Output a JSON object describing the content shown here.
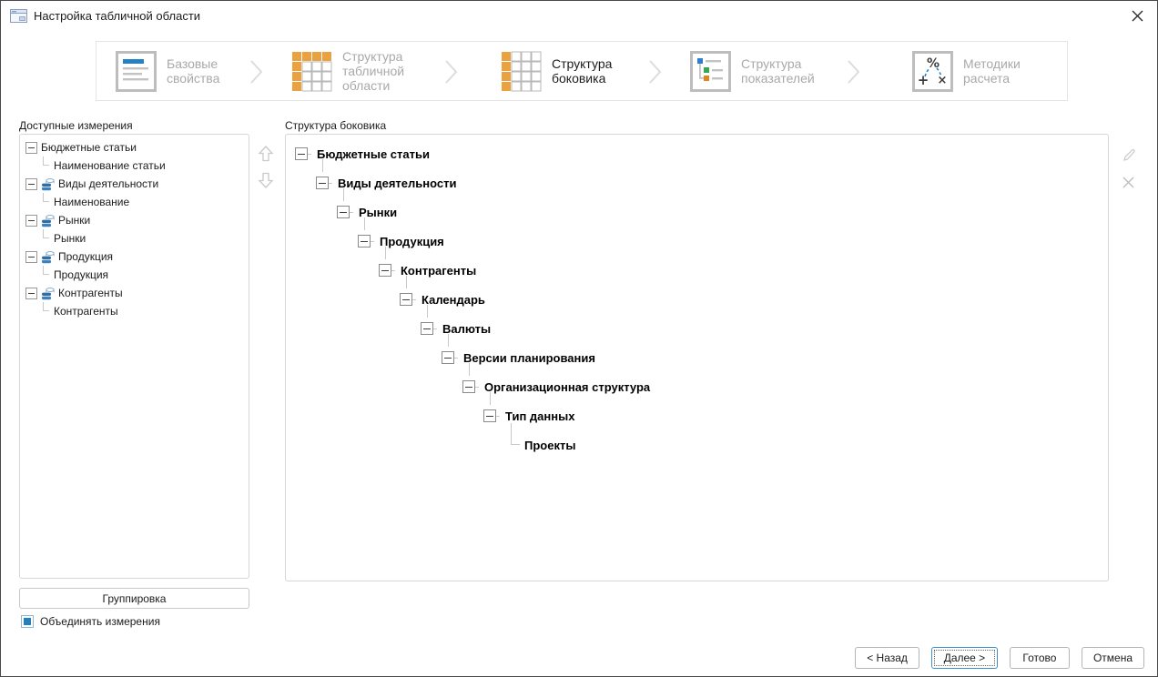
{
  "window": {
    "title": "Настройка табличной области",
    "close_icon": "close-icon"
  },
  "wizard": {
    "steps": [
      {
        "label": "Базовые свойства",
        "icon": "document-icon",
        "active": false
      },
      {
        "label": "Структура табличной области",
        "icon": "table-header-row-col-icon",
        "active": false
      },
      {
        "label": "Структура боковика",
        "icon": "table-side-column-icon",
        "active": true
      },
      {
        "label": "Структура показателей",
        "icon": "indicators-tree-icon",
        "active": false
      },
      {
        "label": "Методики расчета",
        "icon": "calc-methods-icon",
        "active": false
      }
    ]
  },
  "left_panel": {
    "title": "Доступные измерения",
    "tree": [
      {
        "label": "Бюджетные статьи",
        "icon": null,
        "children": [
          "Наименование статьи"
        ]
      },
      {
        "label": "Виды деятельности",
        "icon": "dimension-icon",
        "children": [
          "Наименование"
        ]
      },
      {
        "label": "Рынки",
        "icon": "dimension-icon",
        "children": [
          "Рынки"
        ]
      },
      {
        "label": "Продукция",
        "icon": "dimension-icon",
        "children": [
          "Продукция"
        ]
      },
      {
        "label": "Контрагенты",
        "icon": "dimension-icon",
        "children": [
          "Контрагенты"
        ]
      }
    ],
    "move_up_icon": "arrow-up-icon",
    "move_down_icon": "arrow-down-icon",
    "group_button": "Группировка",
    "merge_checkbox": {
      "label": "Объединять измерения",
      "checked": true
    }
  },
  "right_panel": {
    "title": "Структура боковика",
    "nodes": [
      "Бюджетные статьи",
      "Виды деятельности",
      "Рынки",
      "Продукция",
      "Контрагенты",
      "Календарь",
      "Валюты",
      "Версии планирования",
      "Организационная структура",
      "Тип данных",
      "Проекты"
    ],
    "edit_icon": "pencil-icon",
    "remove_icon": "delete-icon"
  },
  "footer": {
    "back": "< Назад",
    "next": "Далее >",
    "finish": "Готово",
    "cancel": "Отмена"
  },
  "colors": {
    "accent_orange": "#e9a23f",
    "accent_blue": "#2581c4",
    "active_text": "#1c1c1c",
    "inactive_text": "#a9a9a9"
  }
}
